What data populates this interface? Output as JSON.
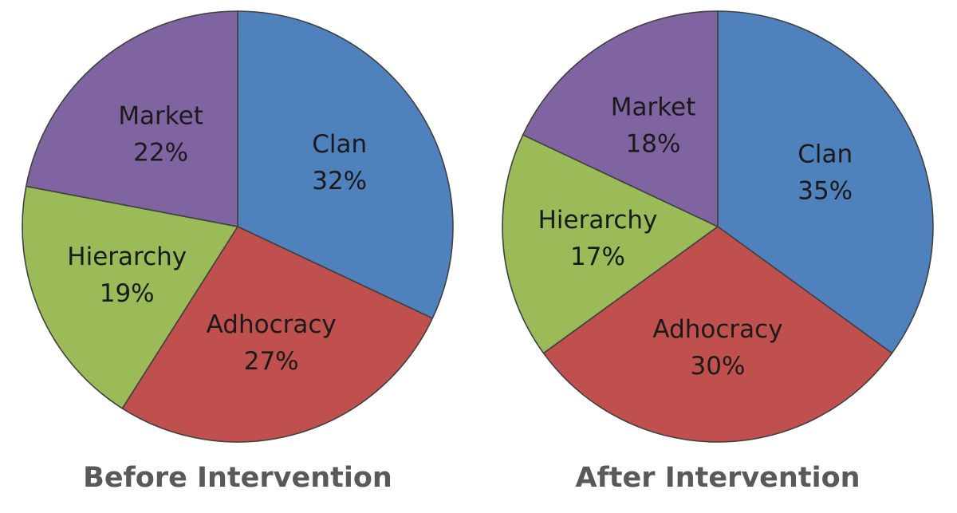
{
  "chart_data": [
    {
      "type": "pie",
      "title": "Before Intervention",
      "start": "12 o'clock",
      "direction": "clockwise",
      "slices": [
        {
          "label": "Clan",
          "value": 32,
          "value_label": "32%",
          "color": "#4F81BD"
        },
        {
          "label": "Adhocracy",
          "value": 27,
          "value_label": "27%",
          "color": "#C0504D"
        },
        {
          "label": "Hierarchy",
          "value": 19,
          "value_label": "19%",
          "color": "#9BBB59"
        },
        {
          "label": "Market",
          "value": 22,
          "value_label": "22%",
          "color": "#8064A2"
        }
      ]
    },
    {
      "type": "pie",
      "title": "After Intervention",
      "start": "12 o'clock",
      "direction": "clockwise",
      "slices": [
        {
          "label": "Clan",
          "value": 35,
          "value_label": "35%",
          "color": "#4F81BD"
        },
        {
          "label": "Adhocracy",
          "value": 30,
          "value_label": "30%",
          "color": "#C0504D"
        },
        {
          "label": "Hierarchy",
          "value": 17,
          "value_label": "17%",
          "color": "#9BBB59"
        },
        {
          "label": "Market",
          "value": 18,
          "value_label": "18%",
          "color": "#8064A2"
        }
      ]
    }
  ]
}
